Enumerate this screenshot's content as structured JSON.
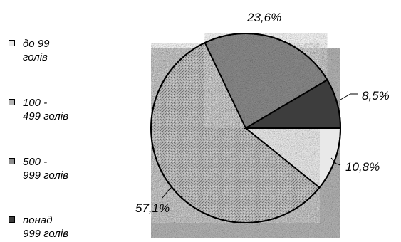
{
  "chart_data": {
    "type": "pie",
    "title": "",
    "slices": [
      {
        "label": "до 99 голів",
        "value": 10.8,
        "data_label": "10,8%",
        "color": "#e9e9e9"
      },
      {
        "label": "100 - 499 голів",
        "value": 57.1,
        "data_label": "57,1%",
        "color": "#b3b3b3"
      },
      {
        "label": "500 - 999 голів",
        "value": 23.6,
        "data_label": "23,6%",
        "color": "#8e8e8e"
      },
      {
        "label": "понад 999 голів",
        "value": 8.5,
        "data_label": "8,5%",
        "color": "#3d3d3d"
      }
    ],
    "legend": {
      "position": "left",
      "items": [
        {
          "line1": "до 99",
          "line2": "голів"
        },
        {
          "line1": "100 -",
          "line2": "499 голів"
        },
        {
          "line1": "500 -",
          "line2": "999 голів"
        },
        {
          "line1": "понад",
          "line2": "999 голів"
        }
      ]
    },
    "plot_background": "#b8b8b8"
  }
}
